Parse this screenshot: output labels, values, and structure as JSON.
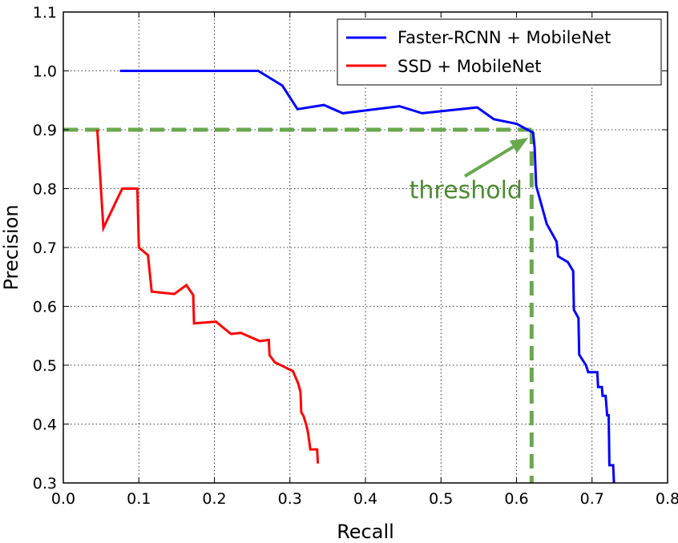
{
  "chart_data": {
    "type": "line",
    "title": "",
    "xlabel": "Recall",
    "ylabel": "Precision",
    "xlim": [
      0.0,
      0.8
    ],
    "ylim": [
      0.3,
      1.1
    ],
    "xticks": [
      "0.0",
      "0.1",
      "0.2",
      "0.3",
      "0.4",
      "0.5",
      "0.6",
      "0.7",
      "0.8"
    ],
    "yticks": [
      "0.3",
      "0.4",
      "0.5",
      "0.6",
      "0.7",
      "0.8",
      "0.9",
      "1.0",
      "1.1"
    ],
    "grid": true,
    "legend_position": "top-right",
    "series": [
      {
        "name": "Faster-RCNN + MobileNet",
        "color": "#0000ff",
        "x": [
          0.075,
          0.11,
          0.2,
          0.258,
          0.29,
          0.31,
          0.345,
          0.37,
          0.445,
          0.475,
          0.548,
          0.57,
          0.6,
          0.622,
          0.624,
          0.626,
          0.64,
          0.653,
          0.655,
          0.668,
          0.675,
          0.676,
          0.682,
          0.683,
          0.692,
          0.695,
          0.707,
          0.708,
          0.713,
          0.714,
          0.718,
          0.72,
          0.722,
          0.723,
          0.728,
          0.729
        ],
        "y": [
          1.0,
          1.0,
          1.0,
          1.0,
          0.975,
          0.935,
          0.942,
          0.928,
          0.94,
          0.928,
          0.938,
          0.918,
          0.91,
          0.895,
          0.87,
          0.805,
          0.74,
          0.71,
          0.685,
          0.675,
          0.66,
          0.594,
          0.58,
          0.518,
          0.5,
          0.488,
          0.488,
          0.463,
          0.463,
          0.448,
          0.448,
          0.415,
          0.415,
          0.33,
          0.33,
          0.3
        ]
      },
      {
        "name": "SSD + MobileNet",
        "color": "#ff0000",
        "x": [
          0.045,
          0.053,
          0.078,
          0.098,
          0.1,
          0.112,
          0.117,
          0.147,
          0.163,
          0.172,
          0.173,
          0.202,
          0.222,
          0.235,
          0.26,
          0.272,
          0.273,
          0.28,
          0.304,
          0.311,
          0.314,
          0.315,
          0.318,
          0.322,
          0.324,
          0.327,
          0.329,
          0.336,
          0.337
        ],
        "y": [
          0.9,
          0.733,
          0.8,
          0.8,
          0.7,
          0.687,
          0.625,
          0.621,
          0.636,
          0.619,
          0.571,
          0.574,
          0.553,
          0.555,
          0.541,
          0.543,
          0.517,
          0.505,
          0.49,
          0.469,
          0.455,
          0.42,
          0.414,
          0.397,
          0.385,
          0.357,
          0.357,
          0.357,
          0.333
        ]
      }
    ],
    "reference_lines": {
      "color": "#6aa84f",
      "horizontal_y": 0.9,
      "vertical_x": 0.62,
      "style": "dashed"
    },
    "annotation": {
      "text": "threshold",
      "color": "#4e8a32",
      "text_x": 0.458,
      "text_y": 0.8,
      "arrow_to": [
        0.622,
        0.9
      ]
    }
  }
}
